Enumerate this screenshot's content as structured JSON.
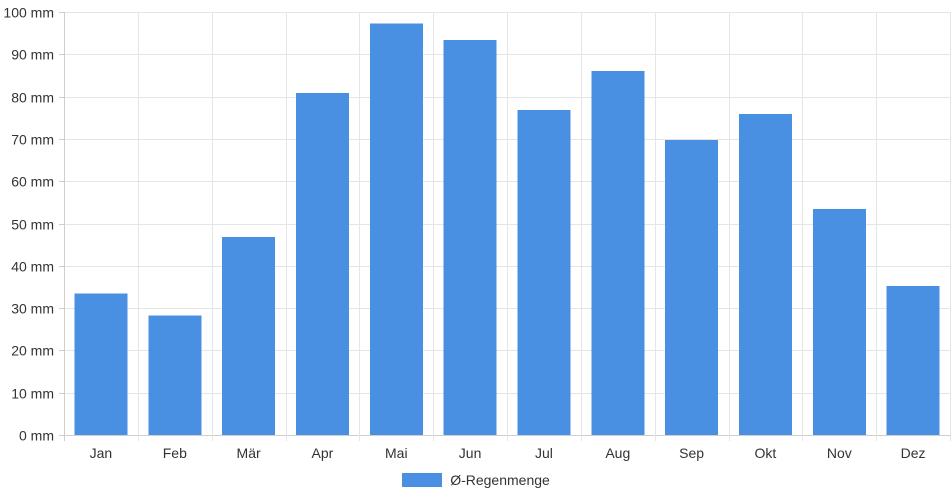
{
  "chart_data": {
    "type": "bar",
    "categories": [
      "Jan",
      "Feb",
      "Mär",
      "Apr",
      "Mai",
      "Jun",
      "Jul",
      "Aug",
      "Sep",
      "Okt",
      "Nov",
      "Dez"
    ],
    "series": [
      {
        "name": "Ø-Regenmenge",
        "values": [
          33.5,
          28.3,
          46.8,
          80.9,
          97.3,
          93.4,
          76.8,
          86.0,
          69.7,
          75.9,
          53.4,
          35.2
        ],
        "color": "#4a90e2"
      }
    ],
    "y_ticks": [
      "0 mm",
      "10 mm",
      "20 mm",
      "30 mm",
      "40 mm",
      "50 mm",
      "60 mm",
      "70 mm",
      "80 mm",
      "90 mm",
      "100 mm"
    ],
    "ylim": [
      0,
      100
    ],
    "grid": true,
    "legend_position": "bottom-center"
  }
}
